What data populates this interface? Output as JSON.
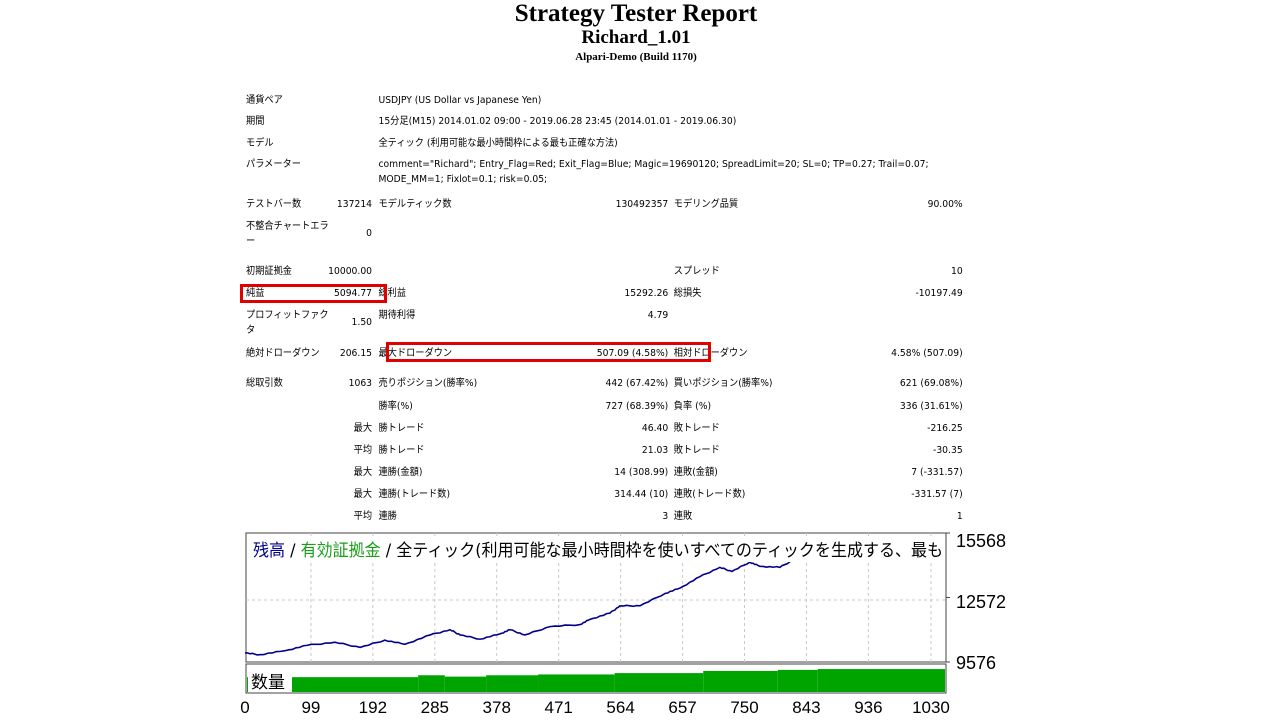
{
  "header": {
    "title": "Strategy Tester Report",
    "ea_name": "Richard_1.01",
    "server": "Alpari-Demo (Build 1170)"
  },
  "info_rows": [
    {
      "label": "通貨ペア",
      "value": "USDJPY (US Dollar vs Japanese Yen)"
    },
    {
      "label": "期間",
      "value": "15分足(M15) 2014.01.02 09:00 - 2019.06.28 23:45 (2014.01.01 - 2019.06.30)"
    },
    {
      "label": "モデル",
      "value": "全ティック (利用可能な最小時間枠による最も正確な方法)"
    },
    {
      "label": "パラメーター",
      "value": "comment=\"Richard\"; Entry_Flag=Red; Exit_Flag=Blue; Magic=19690120; SpreadLimit=20; SL=0; TP=0.27; Trail=0.07; MODE_MM=1; Fixlot=0.1; risk=0.05;"
    }
  ],
  "stat_rows": [
    [
      "テストバー数",
      "137214",
      "モデルティック数",
      "130492357",
      "モデリング品質",
      "90.00%"
    ],
    [
      "不整合チャートエラー",
      "0",
      "",
      "",
      "",
      ""
    ],
    [
      "初期証拠金",
      "10000.00",
      "",
      "",
      "スプレッド",
      "10"
    ],
    [
      "純益",
      "5094.77",
      "総利益",
      "15292.26",
      "総損失",
      "-10197.49"
    ],
    [
      "プロフィットファクタ",
      "1.50",
      "期待利得",
      "4.79",
      "",
      ""
    ],
    [
      "絶対ドローダウン",
      "206.15",
      "最大ドローダウン",
      "507.09 (4.58%)",
      "相対ドローダウン",
      "4.58% (507.09)"
    ],
    [
      "総取引数",
      "1063",
      "売りポジション(勝率%)",
      "442 (67.42%)",
      "買いポジション(勝率%)",
      "621 (69.08%)"
    ],
    [
      "",
      "",
      "勝率(%)",
      "727 (68.39%)",
      "負率 (%)",
      "336 (31.61%)"
    ],
    [
      "",
      "最大",
      "勝トレード",
      "46.40",
      "敗トレード",
      "-216.25"
    ],
    [
      "",
      "平均",
      "勝トレード",
      "21.03",
      "敗トレード",
      "-30.35"
    ],
    [
      "",
      "最大",
      "連勝(金額)",
      "14 (308.99)",
      "連敗(金額)",
      "7 (-331.57)"
    ],
    [
      "",
      "最大",
      "連勝(トレード数)",
      "314.44 (10)",
      "連敗(トレード数)",
      "-331.57 (7)"
    ],
    [
      "",
      "平均",
      "連勝",
      "3",
      "連敗",
      "1"
    ]
  ],
  "highlight_color": "#e00000",
  "chart_data": {
    "type": "line",
    "legend": {
      "balance": "残高",
      "sep1": " / ",
      "equity": "有効証拠金",
      "sep2": " / ",
      "model": "全ティック(利用可能な最小時間枠を使いすべてのティックを生成する、最も"
    },
    "colors": {
      "balance": "#00008b",
      "equity": "#1a9e1a",
      "volume": "#00a400",
      "grid": "#c8c8c8"
    },
    "ylim": [
      9576,
      15568
    ],
    "yticks": [
      "15568",
      "12572",
      "9576"
    ],
    "xticks": [
      "0",
      "99",
      "192",
      "285",
      "378",
      "471",
      "564",
      "657",
      "750",
      "843",
      "936",
      "1030"
    ],
    "volume_label": "数量",
    "balance": [
      [
        0,
        10000
      ],
      [
        22,
        9914
      ],
      [
        60,
        10100
      ],
      [
        93,
        10349
      ],
      [
        135,
        10494
      ],
      [
        173,
        10253
      ],
      [
        210,
        10591
      ],
      [
        240,
        10398
      ],
      [
        278,
        10832
      ],
      [
        308,
        11074
      ],
      [
        323,
        10832
      ],
      [
        353,
        10639
      ],
      [
        383,
        10881
      ],
      [
        398,
        11074
      ],
      [
        420,
        10832
      ],
      [
        458,
        11219
      ],
      [
        503,
        11316
      ],
      [
        518,
        11557
      ],
      [
        548,
        11847
      ],
      [
        563,
        12185
      ],
      [
        593,
        12185
      ],
      [
        631,
        12765
      ],
      [
        653,
        13007
      ],
      [
        683,
        13538
      ],
      [
        713,
        13973
      ],
      [
        731,
        13780
      ],
      [
        758,
        14215
      ],
      [
        773,
        14022
      ],
      [
        803,
        13973
      ],
      [
        826,
        14360
      ],
      [
        866,
        14505
      ]
    ],
    "volume_levels": [
      [
        0,
        0.55
      ],
      [
        260,
        0.62
      ],
      [
        300,
        0.57
      ],
      [
        362,
        0.62
      ],
      [
        440,
        0.65
      ],
      [
        555,
        0.7
      ],
      [
        688,
        0.78
      ],
      [
        800,
        0.82
      ],
      [
        860,
        0.85
      ],
      [
        1052,
        0.85
      ]
    ]
  }
}
